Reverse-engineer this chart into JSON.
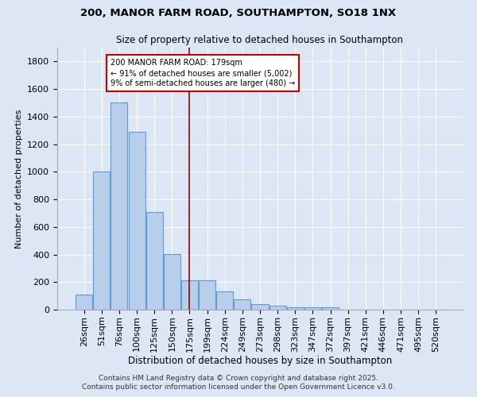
{
  "title1": "200, MANOR FARM ROAD, SOUTHAMPTON, SO18 1NX",
  "title2": "Size of property relative to detached houses in Southampton",
  "xlabel": "Distribution of detached houses by size in Southampton",
  "ylabel": "Number of detached properties",
  "categories": [
    "26sqm",
    "51sqm",
    "76sqm",
    "100sqm",
    "125sqm",
    "150sqm",
    "175sqm",
    "199sqm",
    "224sqm",
    "249sqm",
    "273sqm",
    "298sqm",
    "323sqm",
    "347sqm",
    "372sqm",
    "397sqm",
    "421sqm",
    "446sqm",
    "471sqm",
    "495sqm",
    "520sqm"
  ],
  "values": [
    110,
    1000,
    1500,
    1290,
    710,
    405,
    215,
    215,
    135,
    75,
    40,
    28,
    15,
    20,
    20,
    0,
    0,
    0,
    0,
    0,
    0
  ],
  "bar_color": "#b8ceea",
  "bar_edge_color": "#5a9fd4",
  "bg_color": "#dce6f5",
  "red_line_index": 6,
  "red_line_color": "#8b0000",
  "annotation_text": "200 MANOR FARM ROAD: 179sqm\n← 91% of detached houses are smaller (5,002)\n9% of semi-detached houses are larger (480) →",
  "annotation_box_color": "#ffffff",
  "annotation_border_color": "#cc0000",
  "footer1": "Contains HM Land Registry data © Crown copyright and database right 2025.",
  "footer2": "Contains public sector information licensed under the Open Government Licence v3.0.",
  "ylim": [
    0,
    1900
  ],
  "yticks": [
    0,
    200,
    400,
    600,
    800,
    1000,
    1200,
    1400,
    1600,
    1800
  ]
}
